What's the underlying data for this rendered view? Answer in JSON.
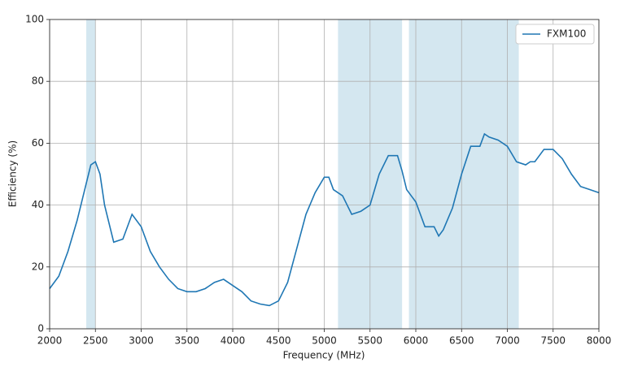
{
  "chart_data": {
    "type": "line",
    "x_label": "Frequency (MHz)",
    "y_label": "Efficiency (%)",
    "x": [
      2000,
      2100,
      2200,
      2300,
      2400,
      2450,
      2500,
      2550,
      2600,
      2700,
      2800,
      2900,
      3000,
      3100,
      3200,
      3300,
      3400,
      3500,
      3600,
      3700,
      3800,
      3900,
      4000,
      4100,
      4200,
      4300,
      4400,
      4500,
      4600,
      4700,
      4800,
      4900,
      5000,
      5050,
      5100,
      5200,
      5300,
      5400,
      5500,
      5600,
      5700,
      5800,
      5850,
      5900,
      6000,
      6100,
      6200,
      6250,
      6300,
      6400,
      6500,
      6600,
      6700,
      6750,
      6800,
      6900,
      7000,
      7100,
      7200,
      7250,
      7300,
      7400,
      7500,
      7600,
      7700,
      7800,
      7900,
      8000
    ],
    "series": [
      {
        "name": "FXM100",
        "color": "#1f77b4",
        "values": [
          13,
          17,
          25,
          35,
          47,
          53,
          54,
          50,
          40,
          28,
          29,
          37,
          33,
          25,
          20,
          16,
          13,
          12,
          12,
          13,
          15,
          16,
          14,
          12,
          9,
          8,
          7.5,
          9,
          15,
          26,
          37,
          44,
          49,
          49,
          45,
          43,
          37,
          38,
          40,
          50,
          56,
          56,
          51,
          45,
          41,
          33,
          33,
          30,
          32,
          39,
          50,
          59,
          59,
          63,
          62,
          61,
          59,
          54,
          53,
          54,
          54,
          58,
          58,
          55,
          50,
          46,
          45,
          44
        ]
      }
    ],
    "highlight_bands": [
      [
        2400,
        2500
      ],
      [
        5150,
        5850
      ],
      [
        5925,
        7125
      ]
    ],
    "band_color": "#d4e7f0",
    "xlim": [
      2000,
      8000
    ],
    "ylim": [
      0,
      100
    ],
    "xticks": [
      2000,
      2500,
      3000,
      3500,
      4000,
      4500,
      5000,
      5500,
      6000,
      6500,
      7000,
      7500,
      8000
    ],
    "yticks": [
      0,
      20,
      40,
      60,
      80,
      100
    ],
    "grid": true,
    "legend": "upper right"
  }
}
